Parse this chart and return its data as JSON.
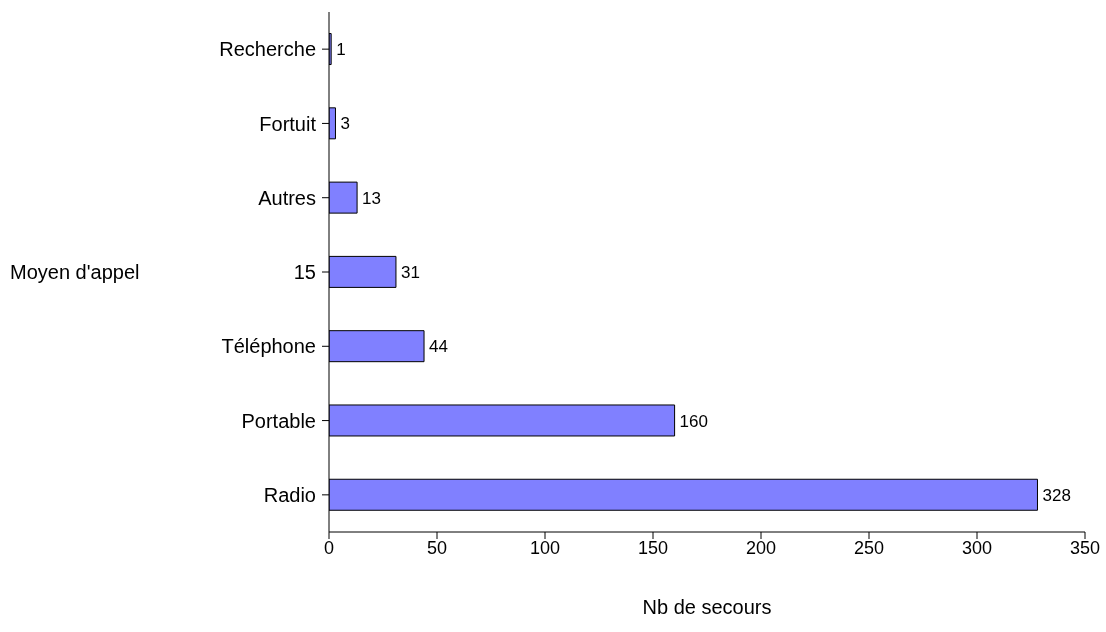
{
  "chart_data": {
    "type": "bar",
    "orientation": "horizontal",
    "ylabel": "Moyen d'appel",
    "xlabel": "Nb de secours",
    "categories": [
      "Recherche",
      "Fortuit",
      "Autres",
      "15",
      "Téléphone",
      "Portable",
      "Radio"
    ],
    "values": [
      1,
      3,
      13,
      31,
      44,
      160,
      328
    ],
    "color": "#8080ff",
    "xlim": [
      0,
      350
    ],
    "xticks": [
      0,
      50,
      100,
      150,
      200,
      250,
      300,
      350
    ],
    "data_labels": true,
    "grid": false,
    "legend": false
  }
}
